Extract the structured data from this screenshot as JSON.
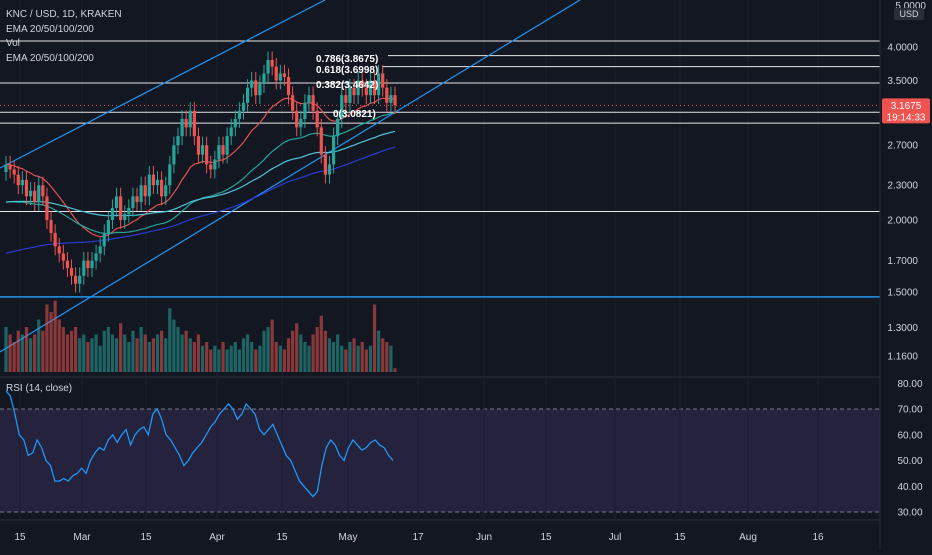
{
  "header": {
    "symbol_line": "KNC / USD, 1D, KRAKEN",
    "indicators": [
      "EMA 20/50/100/200",
      "Vol",
      "EMA 20/50/100/200"
    ],
    "rsi_label": "RSI (14, close)"
  },
  "price_axis": {
    "unit_label": "USD",
    "top_label": "5.0000",
    "ticks": [
      "4.0000",
      "3.5000",
      "3.1675",
      "2.7000",
      "2.3000",
      "2.0000",
      "1.7000",
      "1.5000",
      "1.3000",
      "1.1600"
    ],
    "current_price": "3.1675",
    "countdown": "19:14:33"
  },
  "rsi_axis": {
    "ticks": [
      "80.00",
      "70.00",
      "60.00",
      "50.00",
      "40.00",
      "30.00"
    ]
  },
  "time_axis": {
    "ticks": [
      "15",
      "Mar",
      "15",
      "Apr",
      "15",
      "May",
      "17",
      "Jun",
      "15",
      "Jul",
      "15",
      "Aug",
      "16"
    ]
  },
  "fib_labels": [
    "0.786(3.8675)",
    "0.618(3.6998)",
    "0.382(3.4642)",
    "0(3.0821)"
  ],
  "colors": {
    "background": "#131722",
    "up": "#26a69a",
    "down": "#ef5350",
    "channel": "#2196f3",
    "ema20": "#e05353",
    "ema50": "#26a69a",
    "ema100": "#4fc3d7",
    "ema200": "#2a3bd1",
    "rsi_line": "#2196f3",
    "rsi_band": "#7e57c2"
  },
  "chart_data": [
    {
      "type": "candlestick",
      "title": "KNC / USD, 1D, KRAKEN",
      "xlabel": "",
      "ylabel": "USD",
      "scale": "log",
      "ylim": [
        1.1,
        5.0
      ],
      "x_ticks": [
        "15",
        "Mar",
        "15",
        "Apr",
        "15",
        "May",
        "17",
        "Jun",
        "15",
        "Jul",
        "15",
        "Aug",
        "16"
      ],
      "ohlc_close": [
        2.5,
        2.45,
        2.4,
        2.3,
        2.35,
        2.2,
        2.25,
        2.15,
        2.3,
        2.2,
        2.0,
        1.9,
        1.8,
        1.75,
        1.7,
        1.65,
        1.6,
        1.55,
        1.6,
        1.7,
        1.65,
        1.7,
        1.75,
        1.8,
        1.9,
        2.0,
        2.1,
        2.2,
        2.0,
        2.05,
        2.1,
        2.2,
        2.15,
        2.3,
        2.2,
        2.4,
        2.3,
        2.35,
        2.2,
        2.3,
        2.5,
        2.7,
        2.8,
        3.0,
        2.9,
        3.1,
        2.8,
        2.6,
        2.7,
        2.5,
        2.45,
        2.55,
        2.7,
        2.6,
        2.8,
        2.9,
        3.0,
        3.1,
        3.2,
        3.4,
        3.5,
        3.3,
        3.45,
        3.6,
        3.8,
        3.7,
        3.5,
        3.6,
        3.55,
        3.3,
        3.1,
        2.9,
        3.0,
        3.2,
        3.3,
        3.1,
        2.9,
        2.6,
        2.4,
        2.5,
        2.8,
        3.0,
        3.3,
        3.2,
        3.4,
        3.3,
        3.5,
        3.4,
        3.3,
        3.5,
        3.3,
        3.6,
        3.4,
        3.2,
        3.3,
        3.17
      ],
      "series": [
        {
          "name": "Vol",
          "values": [
            0.6,
            0.5,
            0.4,
            0.55,
            0.5,
            0.6,
            0.45,
            0.5,
            0.7,
            0.55,
            0.9,
            0.8,
            0.95,
            0.7,
            0.6,
            0.5,
            0.55,
            0.6,
            0.45,
            0.5,
            0.4,
            0.45,
            0.5,
            0.35,
            0.55,
            0.6,
            0.5,
            0.45,
            0.65,
            0.5,
            0.4,
            0.55,
            0.45,
            0.6,
            0.5,
            0.4,
            0.45,
            0.5,
            0.55,
            0.45,
            0.85,
            0.7,
            0.6,
            0.5,
            0.55,
            0.45,
            0.4,
            0.5,
            0.35,
            0.4,
            0.3,
            0.35,
            0.3,
            0.4,
            0.3,
            0.35,
            0.4,
            0.3,
            0.45,
            0.5,
            0.4,
            0.3,
            0.35,
            0.55,
            0.6,
            0.7,
            0.4,
            0.35,
            0.3,
            0.45,
            0.55,
            0.65,
            0.5,
            0.4,
            0.35,
            0.5,
            0.6,
            0.75,
            0.55,
            0.45,
            0.4,
            0.5,
            0.35,
            0.3,
            0.4,
            0.45,
            0.35,
            0.4,
            0.3,
            0.35,
            0.9,
            0.55,
            0.45,
            0.4,
            0.35,
            0.05
          ]
        }
      ],
      "horizontal_levels": [
        4.1,
        3.8675,
        3.6998,
        3.4642,
        3.0821,
        2.95,
        2.07,
        1.47
      ],
      "current_price": 3.1675
    },
    {
      "type": "line",
      "title": "RSI (14, close)",
      "ylim": [
        25,
        80
      ],
      "levels": [
        70,
        30
      ],
      "values": [
        77,
        75,
        68,
        60,
        58,
        52,
        53,
        58,
        55,
        50,
        48,
        42,
        42,
        43,
        42,
        44,
        45,
        47,
        45,
        50,
        53,
        55,
        54,
        58,
        60,
        57,
        60,
        62,
        56,
        60,
        62,
        63,
        60,
        68,
        70,
        66,
        60,
        58,
        55,
        52,
        48,
        50,
        53,
        55,
        57,
        60,
        63,
        65,
        68,
        70,
        72,
        70,
        66,
        68,
        72,
        70,
        68,
        62,
        60,
        62,
        64,
        60,
        56,
        52,
        50,
        46,
        42,
        40,
        38,
        36,
        38,
        48,
        55,
        58,
        56,
        52,
        50,
        55,
        58,
        56,
        54,
        55,
        57,
        58,
        56,
        55,
        52,
        50
      ]
    }
  ]
}
